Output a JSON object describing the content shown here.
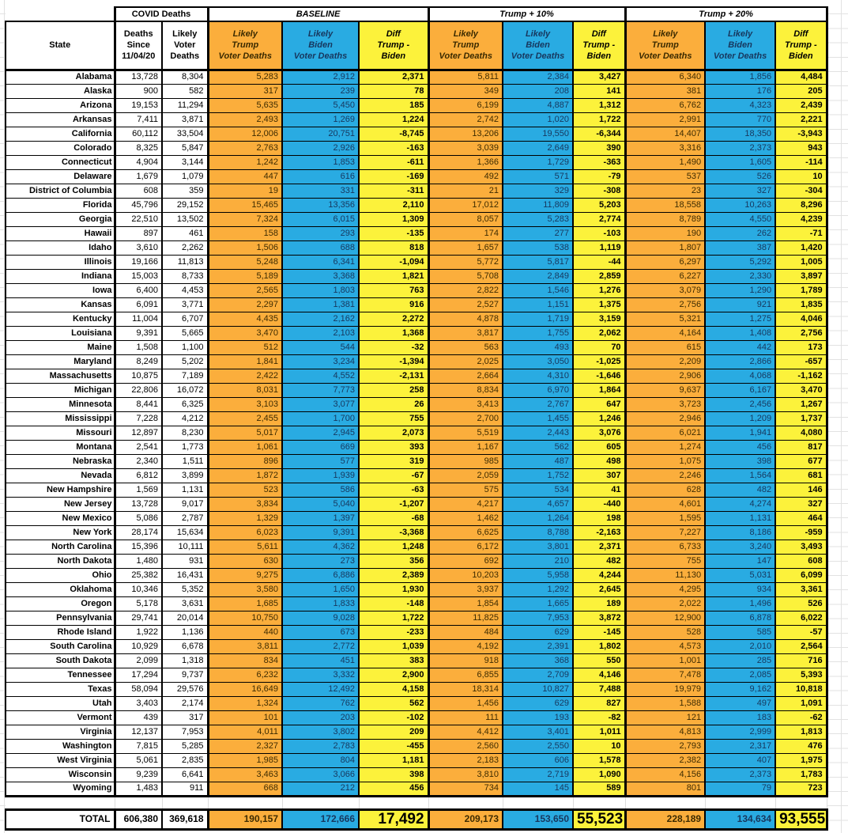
{
  "colors": {
    "trump_orange": "#FBAE3C",
    "biden_blue": "#29ABE2",
    "diff_yellow": "#FCF23B"
  },
  "table": {
    "group_headers": {
      "covid": "COVID Deaths",
      "baseline": "BASELINE",
      "t10": "Trump + 10%",
      "t20": "Trump + 20%"
    },
    "columns": [
      {
        "id": "state",
        "header": "State",
        "type": "state"
      },
      {
        "id": "deaths-since",
        "header": "Deaths\nSince\n11/04/20",
        "type": "num"
      },
      {
        "id": "likely-voter-deaths",
        "header": "Likely\nVoter\nDeaths",
        "type": "num"
      },
      {
        "id": "baseline-trump-deaths",
        "header": "Likely\nTrump\nVoter Deaths",
        "type": "t"
      },
      {
        "id": "baseline-biden-deaths",
        "header": "Likely\nBiden\nVoter Deaths",
        "type": "b"
      },
      {
        "id": "baseline-diff",
        "header": "Diff\nTrump -\nBiden",
        "type": "d"
      },
      {
        "id": "t10-trump-deaths",
        "header": "Likely\nTrump\nVoter Deaths",
        "type": "t"
      },
      {
        "id": "t10-biden-deaths",
        "header": "Likely\nBiden\nVoter Deaths",
        "type": "b"
      },
      {
        "id": "t10-diff",
        "header": "Diff\nTrump -\nBiden",
        "type": "d"
      },
      {
        "id": "t20-trump-deaths",
        "header": "Likely\nTrump\nVoter Deaths",
        "type": "t"
      },
      {
        "id": "t20-biden-deaths",
        "header": "Likely\nBiden\nVoter Deaths",
        "type": "b"
      },
      {
        "id": "t20-diff",
        "header": "Diff\nTrump -\nBiden",
        "type": "d"
      }
    ],
    "rows": [
      [
        "Alabama",
        "13,728",
        "8,304",
        "5,283",
        "2,912",
        "2,371",
        "5,811",
        "2,384",
        "3,427",
        "6,340",
        "1,856",
        "4,484"
      ],
      [
        "Alaska",
        "900",
        "582",
        "317",
        "239",
        "78",
        "349",
        "208",
        "141",
        "381",
        "176",
        "205"
      ],
      [
        "Arizona",
        "19,153",
        "11,294",
        "5,635",
        "5,450",
        "185",
        "6,199",
        "4,887",
        "1,312",
        "6,762",
        "4,323",
        "2,439"
      ],
      [
        "Arkansas",
        "7,411",
        "3,871",
        "2,493",
        "1,269",
        "1,224",
        "2,742",
        "1,020",
        "1,722",
        "2,991",
        "770",
        "2,221"
      ],
      [
        "California",
        "60,112",
        "33,504",
        "12,006",
        "20,751",
        "-8,745",
        "13,206",
        "19,550",
        "-6,344",
        "14,407",
        "18,350",
        "-3,943"
      ],
      [
        "Colorado",
        "8,325",
        "5,847",
        "2,763",
        "2,926",
        "-163",
        "3,039",
        "2,649",
        "390",
        "3,316",
        "2,373",
        "943"
      ],
      [
        "Connecticut",
        "4,904",
        "3,144",
        "1,242",
        "1,853",
        "-611",
        "1,366",
        "1,729",
        "-363",
        "1,490",
        "1,605",
        "-114"
      ],
      [
        "Delaware",
        "1,679",
        "1,079",
        "447",
        "616",
        "-169",
        "492",
        "571",
        "-79",
        "537",
        "526",
        "10"
      ],
      [
        "District of Columbia",
        "608",
        "359",
        "19",
        "331",
        "-311",
        "21",
        "329",
        "-308",
        "23",
        "327",
        "-304"
      ],
      [
        "Florida",
        "45,796",
        "29,152",
        "15,465",
        "13,356",
        "2,110",
        "17,012",
        "11,809",
        "5,203",
        "18,558",
        "10,263",
        "8,296"
      ],
      [
        "Georgia",
        "22,510",
        "13,502",
        "7,324",
        "6,015",
        "1,309",
        "8,057",
        "5,283",
        "2,774",
        "8,789",
        "4,550",
        "4,239"
      ],
      [
        "Hawaii",
        "897",
        "461",
        "158",
        "293",
        "-135",
        "174",
        "277",
        "-103",
        "190",
        "262",
        "-71"
      ],
      [
        "Idaho",
        "3,610",
        "2,262",
        "1,506",
        "688",
        "818",
        "1,657",
        "538",
        "1,119",
        "1,807",
        "387",
        "1,420"
      ],
      [
        "Illinois",
        "19,166",
        "11,813",
        "5,248",
        "6,341",
        "-1,094",
        "5,772",
        "5,817",
        "-44",
        "6,297",
        "5,292",
        "1,005"
      ],
      [
        "Indiana",
        "15,003",
        "8,733",
        "5,189",
        "3,368",
        "1,821",
        "5,708",
        "2,849",
        "2,859",
        "6,227",
        "2,330",
        "3,897"
      ],
      [
        "Iowa",
        "6,400",
        "4,453",
        "2,565",
        "1,803",
        "763",
        "2,822",
        "1,546",
        "1,276",
        "3,079",
        "1,290",
        "1,789"
      ],
      [
        "Kansas",
        "6,091",
        "3,771",
        "2,297",
        "1,381",
        "916",
        "2,527",
        "1,151",
        "1,375",
        "2,756",
        "921",
        "1,835"
      ],
      [
        "Kentucky",
        "11,004",
        "6,707",
        "4,435",
        "2,162",
        "2,272",
        "4,878",
        "1,719",
        "3,159",
        "5,321",
        "1,275",
        "4,046"
      ],
      [
        "Louisiana",
        "9,391",
        "5,665",
        "3,470",
        "2,103",
        "1,368",
        "3,817",
        "1,755",
        "2,062",
        "4,164",
        "1,408",
        "2,756"
      ],
      [
        "Maine",
        "1,508",
        "1,100",
        "512",
        "544",
        "-32",
        "563",
        "493",
        "70",
        "615",
        "442",
        "173"
      ],
      [
        "Maryland",
        "8,249",
        "5,202",
        "1,841",
        "3,234",
        "-1,394",
        "2,025",
        "3,050",
        "-1,025",
        "2,209",
        "2,866",
        "-657"
      ],
      [
        "Massachusetts",
        "10,875",
        "7,189",
        "2,422",
        "4,552",
        "-2,131",
        "2,664",
        "4,310",
        "-1,646",
        "2,906",
        "4,068",
        "-1,162"
      ],
      [
        "Michigan",
        "22,806",
        "16,072",
        "8,031",
        "7,773",
        "258",
        "8,834",
        "6,970",
        "1,864",
        "9,637",
        "6,167",
        "3,470"
      ],
      [
        "Minnesota",
        "8,441",
        "6,325",
        "3,103",
        "3,077",
        "26",
        "3,413",
        "2,767",
        "647",
        "3,723",
        "2,456",
        "1,267"
      ],
      [
        "Mississippi",
        "7,228",
        "4,212",
        "2,455",
        "1,700",
        "755",
        "2,700",
        "1,455",
        "1,246",
        "2,946",
        "1,209",
        "1,737"
      ],
      [
        "Missouri",
        "12,897",
        "8,230",
        "5,017",
        "2,945",
        "2,073",
        "5,519",
        "2,443",
        "3,076",
        "6,021",
        "1,941",
        "4,080"
      ],
      [
        "Montana",
        "2,541",
        "1,773",
        "1,061",
        "669",
        "393",
        "1,167",
        "562",
        "605",
        "1,274",
        "456",
        "817"
      ],
      [
        "Nebraska",
        "2,340",
        "1,511",
        "896",
        "577",
        "319",
        "985",
        "487",
        "498",
        "1,075",
        "398",
        "677"
      ],
      [
        "Nevada",
        "6,812",
        "3,899",
        "1,872",
        "1,939",
        "-67",
        "2,059",
        "1,752",
        "307",
        "2,246",
        "1,564",
        "681"
      ],
      [
        "New Hampshire",
        "1,569",
        "1,131",
        "523",
        "586",
        "-63",
        "575",
        "534",
        "41",
        "628",
        "482",
        "146"
      ],
      [
        "New Jersey",
        "13,728",
        "9,017",
        "3,834",
        "5,040",
        "-1,207",
        "4,217",
        "4,657",
        "-440",
        "4,601",
        "4,274",
        "327"
      ],
      [
        "New Mexico",
        "5,086",
        "2,787",
        "1,329",
        "1,397",
        "-68",
        "1,462",
        "1,264",
        "198",
        "1,595",
        "1,131",
        "464"
      ],
      [
        "New York",
        "28,174",
        "15,634",
        "6,023",
        "9,391",
        "-3,368",
        "6,625",
        "8,788",
        "-2,163",
        "7,227",
        "8,186",
        "-959"
      ],
      [
        "North Carolina",
        "15,396",
        "10,111",
        "5,611",
        "4,362",
        "1,248",
        "6,172",
        "3,801",
        "2,371",
        "6,733",
        "3,240",
        "3,493"
      ],
      [
        "North Dakota",
        "1,480",
        "931",
        "630",
        "273",
        "356",
        "692",
        "210",
        "482",
        "755",
        "147",
        "608"
      ],
      [
        "Ohio",
        "25,382",
        "16,431",
        "9,275",
        "6,886",
        "2,389",
        "10,203",
        "5,958",
        "4,244",
        "11,130",
        "5,031",
        "6,099"
      ],
      [
        "Oklahoma",
        "10,346",
        "5,352",
        "3,580",
        "1,650",
        "1,930",
        "3,937",
        "1,292",
        "2,645",
        "4,295",
        "934",
        "3,361"
      ],
      [
        "Oregon",
        "5,178",
        "3,631",
        "1,685",
        "1,833",
        "-148",
        "1,854",
        "1,665",
        "189",
        "2,022",
        "1,496",
        "526"
      ],
      [
        "Pennsylvania",
        "29,741",
        "20,014",
        "10,750",
        "9,028",
        "1,722",
        "11,825",
        "7,953",
        "3,872",
        "12,900",
        "6,878",
        "6,022"
      ],
      [
        "Rhode Island",
        "1,922",
        "1,136",
        "440",
        "673",
        "-233",
        "484",
        "629",
        "-145",
        "528",
        "585",
        "-57"
      ],
      [
        "South Carolina",
        "10,929",
        "6,678",
        "3,811",
        "2,772",
        "1,039",
        "4,192",
        "2,391",
        "1,802",
        "4,573",
        "2,010",
        "2,564"
      ],
      [
        "South Dakota",
        "2,099",
        "1,318",
        "834",
        "451",
        "383",
        "918",
        "368",
        "550",
        "1,001",
        "285",
        "716"
      ],
      [
        "Tennessee",
        "17,294",
        "9,737",
        "6,232",
        "3,332",
        "2,900",
        "6,855",
        "2,709",
        "4,146",
        "7,478",
        "2,085",
        "5,393"
      ],
      [
        "Texas",
        "58,094",
        "29,576",
        "16,649",
        "12,492",
        "4,158",
        "18,314",
        "10,827",
        "7,488",
        "19,979",
        "9,162",
        "10,818"
      ],
      [
        "Utah",
        "3,403",
        "2,174",
        "1,324",
        "762",
        "562",
        "1,456",
        "629",
        "827",
        "1,588",
        "497",
        "1,091"
      ],
      [
        "Vermont",
        "439",
        "317",
        "101",
        "203",
        "-102",
        "111",
        "193",
        "-82",
        "121",
        "183",
        "-62"
      ],
      [
        "Virginia",
        "12,137",
        "7,953",
        "4,011",
        "3,802",
        "209",
        "4,412",
        "3,401",
        "1,011",
        "4,813",
        "2,999",
        "1,813"
      ],
      [
        "Washington",
        "7,815",
        "5,285",
        "2,327",
        "2,783",
        "-455",
        "2,560",
        "2,550",
        "10",
        "2,793",
        "2,317",
        "476"
      ],
      [
        "West Virginia",
        "5,061",
        "2,835",
        "1,985",
        "804",
        "1,181",
        "2,183",
        "606",
        "1,578",
        "2,382",
        "407",
        "1,975"
      ],
      [
        "Wisconsin",
        "9,239",
        "6,641",
        "3,463",
        "3,066",
        "398",
        "3,810",
        "2,719",
        "1,090",
        "4,156",
        "2,373",
        "1,783"
      ],
      [
        "Wyoming",
        "1,483",
        "911",
        "668",
        "212",
        "456",
        "734",
        "145",
        "589",
        "801",
        "79",
        "723"
      ]
    ],
    "total_row": [
      "TOTAL",
      "606,380",
      "369,618",
      "190,157",
      "172,666",
      "17,492",
      "209,173",
      "153,650",
      "55,523",
      "228,189",
      "134,634",
      "93,555"
    ]
  }
}
